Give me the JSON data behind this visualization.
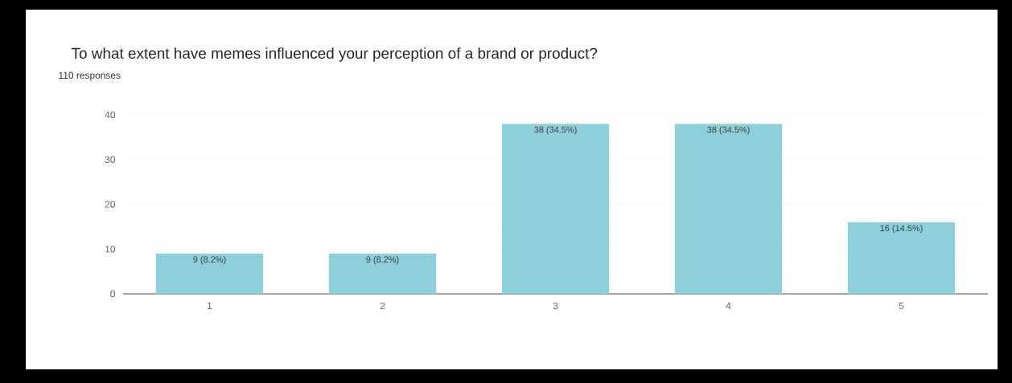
{
  "chart_data": {
    "type": "bar",
    "title": "To what extent have memes influenced your perception of a brand or product?",
    "subtitle": "110 responses",
    "categories": [
      "1",
      "2",
      "3",
      "4",
      "5"
    ],
    "values": [
      9,
      9,
      38,
      38,
      16
    ],
    "value_labels": [
      "9 (8.2%)",
      "9 (8.2%)",
      "38 (34.5%)",
      "38 (34.5%)",
      "16 (14.5%)"
    ],
    "color": "#8ed0d9",
    "ylim": [
      0,
      40
    ],
    "yticks": [
      0,
      10,
      20,
      30,
      40
    ],
    "grid": "y"
  }
}
